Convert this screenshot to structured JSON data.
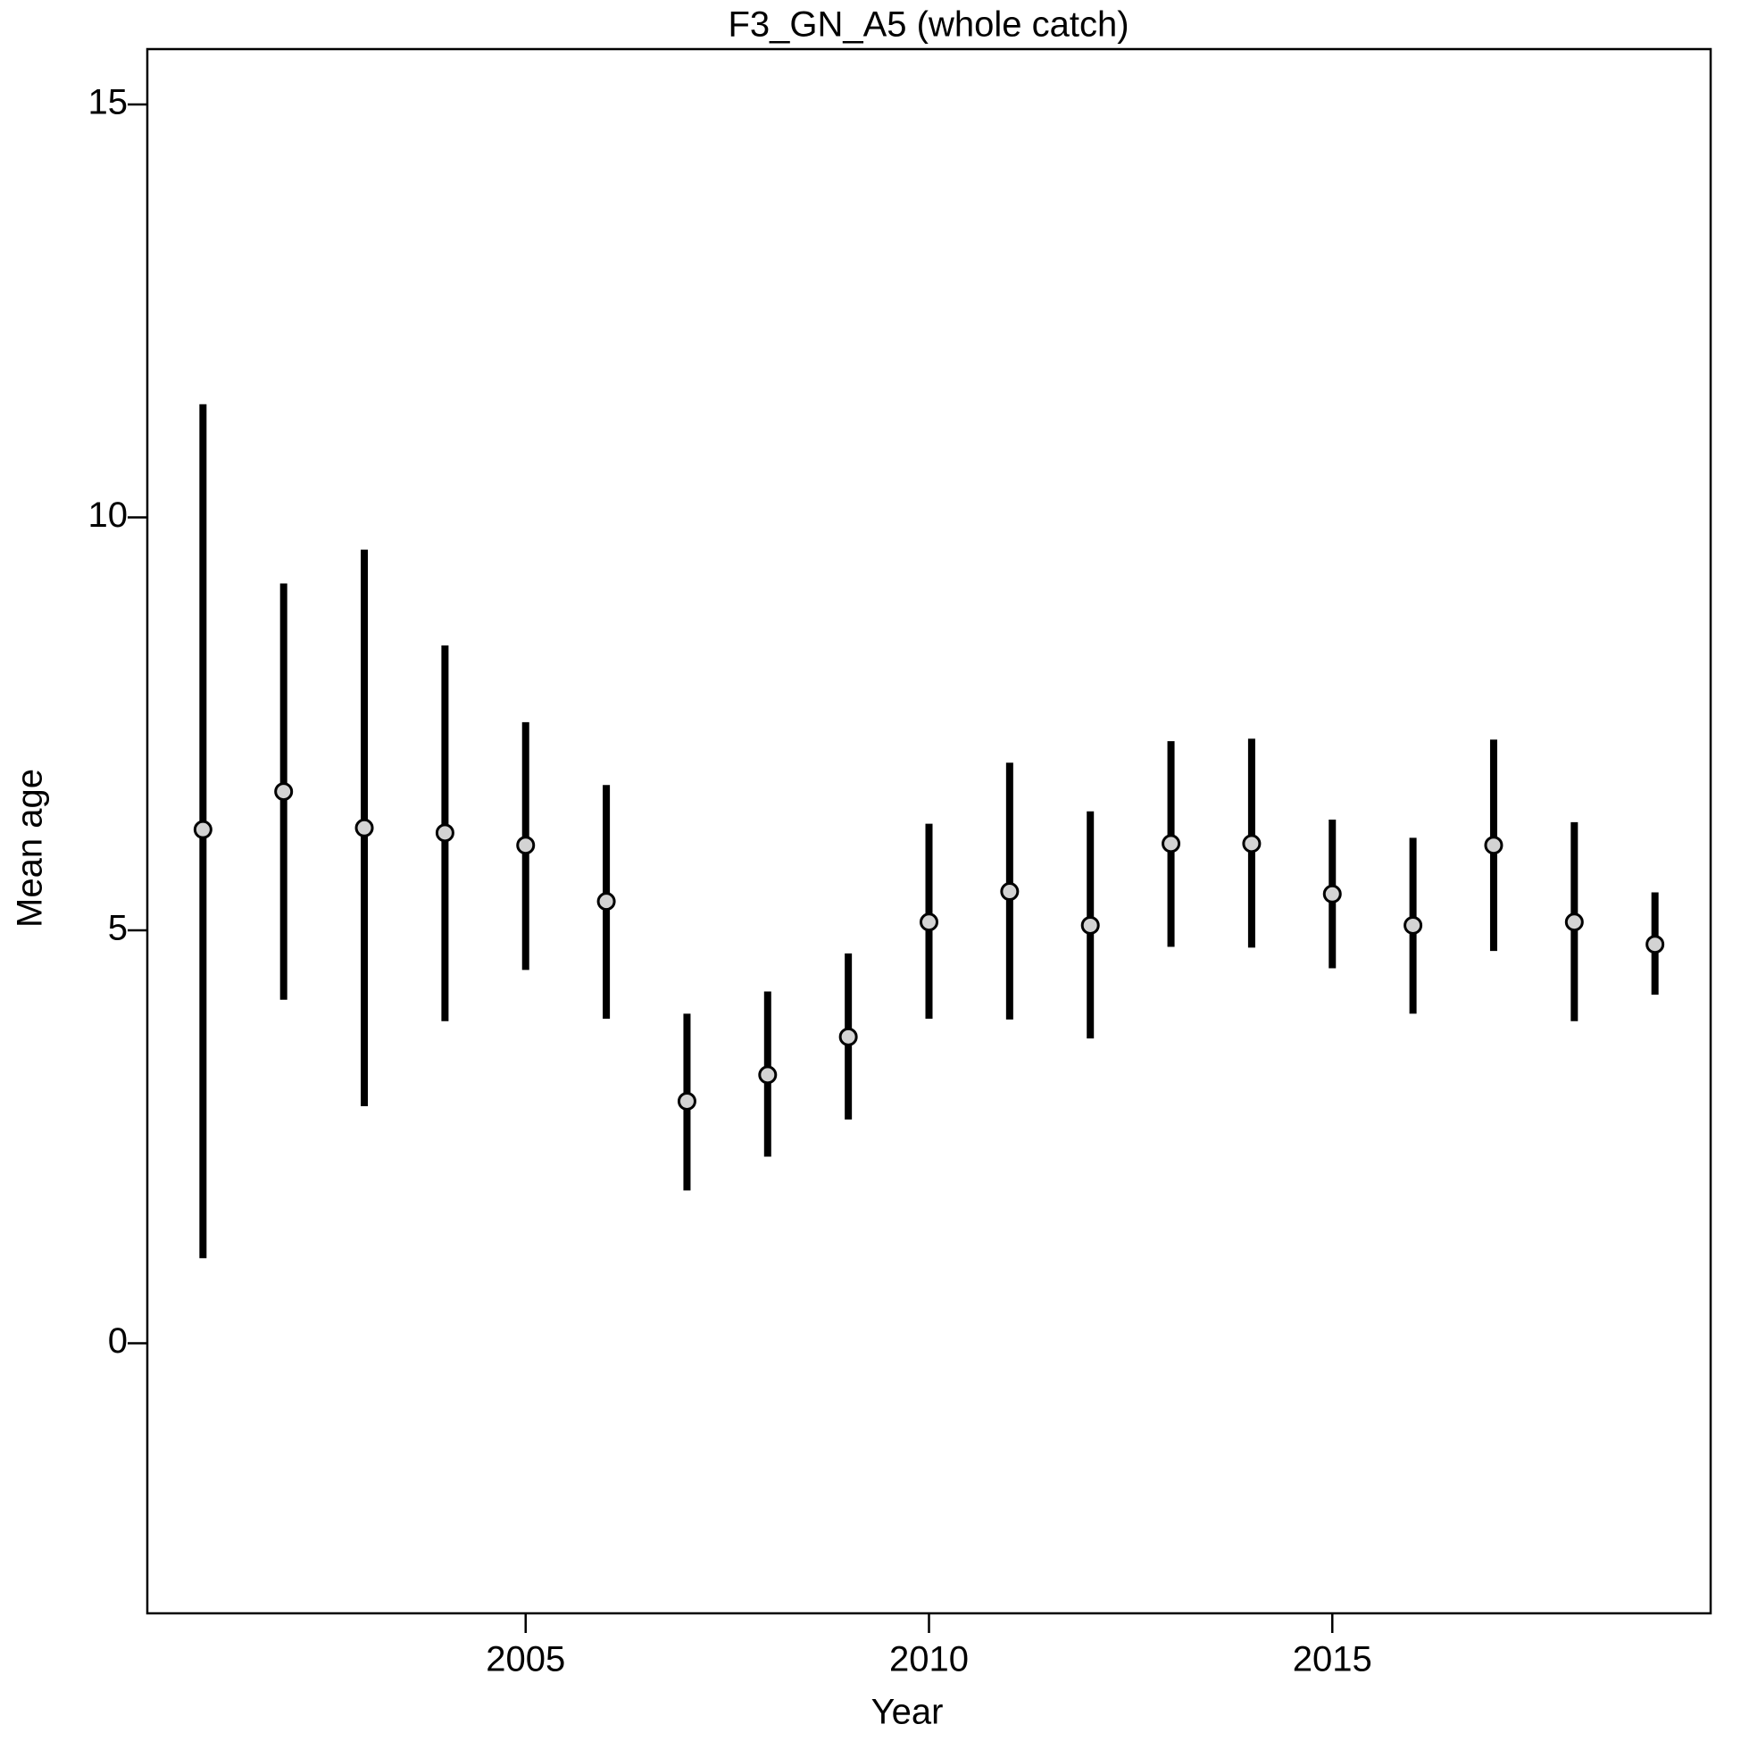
{
  "chart_data": {
    "type": "errorbar",
    "title": "F3_GN_A5 (whole catch)",
    "x_label": "Year",
    "y_label": "Mean age",
    "x": [
      2001,
      2002,
      2003,
      2004,
      2005,
      2006,
      2007,
      2008,
      2009,
      2010,
      2011,
      2012,
      2013,
      2014,
      2015,
      2016,
      2017,
      2018,
      2019
    ],
    "values": [
      6.22,
      6.68,
      6.24,
      6.18,
      6.03,
      5.35,
      2.93,
      3.25,
      3.71,
      5.1,
      5.47,
      5.06,
      6.05,
      6.05,
      5.44,
      5.06,
      6.03,
      5.1,
      4.83
    ],
    "lower": [
      1.03,
      4.16,
      2.87,
      3.9,
      4.52,
      3.93,
      1.85,
      2.26,
      2.71,
      3.93,
      3.92,
      3.69,
      4.8,
      4.79,
      4.54,
      3.99,
      4.75,
      3.9,
      4.22
    ],
    "upper": [
      11.37,
      9.2,
      9.61,
      8.45,
      7.52,
      6.76,
      3.99,
      4.26,
      4.72,
      6.29,
      7.03,
      6.44,
      7.29,
      7.32,
      6.34,
      6.12,
      7.31,
      6.31,
      5.46
    ],
    "point_color": "#d3d3d3",
    "bar_color": "#000000",
    "xlim": [
      2000.31,
      2019.69
    ],
    "ylim": [
      -3.27,
      15.67
    ],
    "xticks": [
      2005,
      2010,
      2015
    ],
    "yticks": [
      0,
      5,
      10,
      15
    ]
  }
}
